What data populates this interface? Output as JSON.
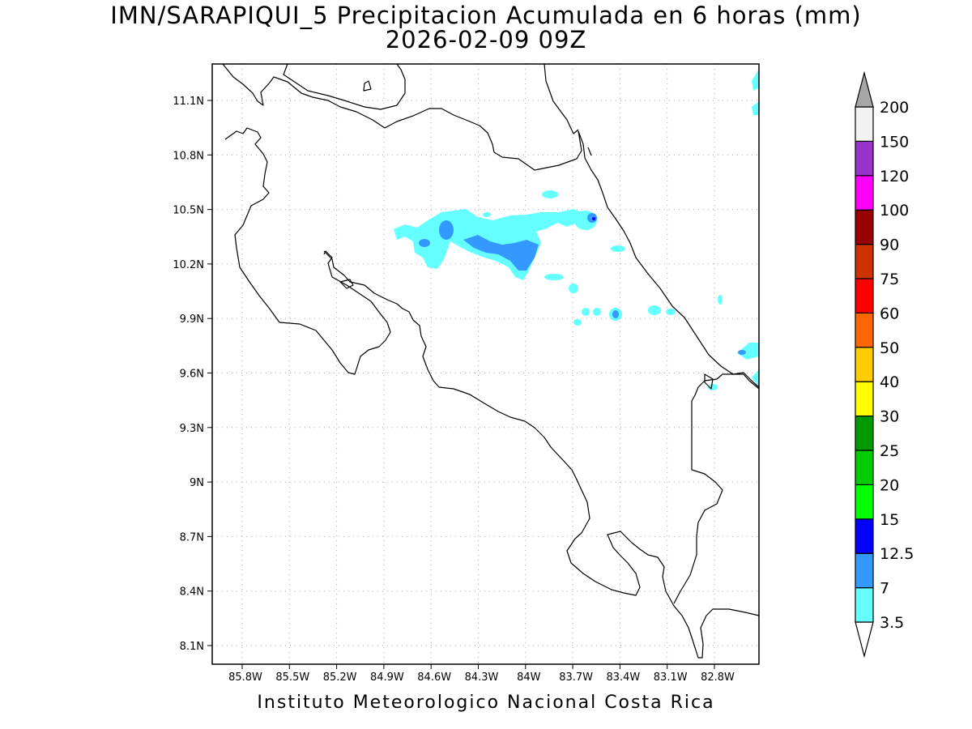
{
  "title": {
    "line1": "IMN/SARAPIQUI_5 Precipitacion Acumulada en 6 horas (mm)",
    "line2": "2026-02-09 09Z"
  },
  "footer": "Instituto Meteorologico Nacional Costa Rica",
  "axes": {
    "lat_labels": [
      "11.1N",
      "10.8N",
      "10.5N",
      "10.2N",
      "9.9N",
      "9.6N",
      "9.3N",
      "9N",
      "8.7N",
      "8.4N",
      "8.1N"
    ],
    "lon_labels": [
      "85.8W",
      "85.5W",
      "85.2W",
      "84.9W",
      "84.6W",
      "84.3W",
      "84W",
      "83.7W",
      "83.4W",
      "83.1W",
      "82.8W"
    ]
  },
  "colorbar": {
    "labels": [
      "3.5",
      "7",
      "12.5",
      "15",
      "20",
      "25",
      "30",
      "40",
      "50",
      "60",
      "75",
      "90",
      "100",
      "120",
      "150",
      "200"
    ],
    "colors": [
      "#ffffff",
      "#66ffff",
      "#3399ff",
      "#0000ff",
      "#00ff00",
      "#00cc00",
      "#009900",
      "#ffff00",
      "#ffcc00",
      "#ff6600",
      "#ff0000",
      "#cc3300",
      "#990000",
      "#ff00ff",
      "#9933cc",
      "#f2f2f2",
      "#a6a6a6"
    ]
  }
}
